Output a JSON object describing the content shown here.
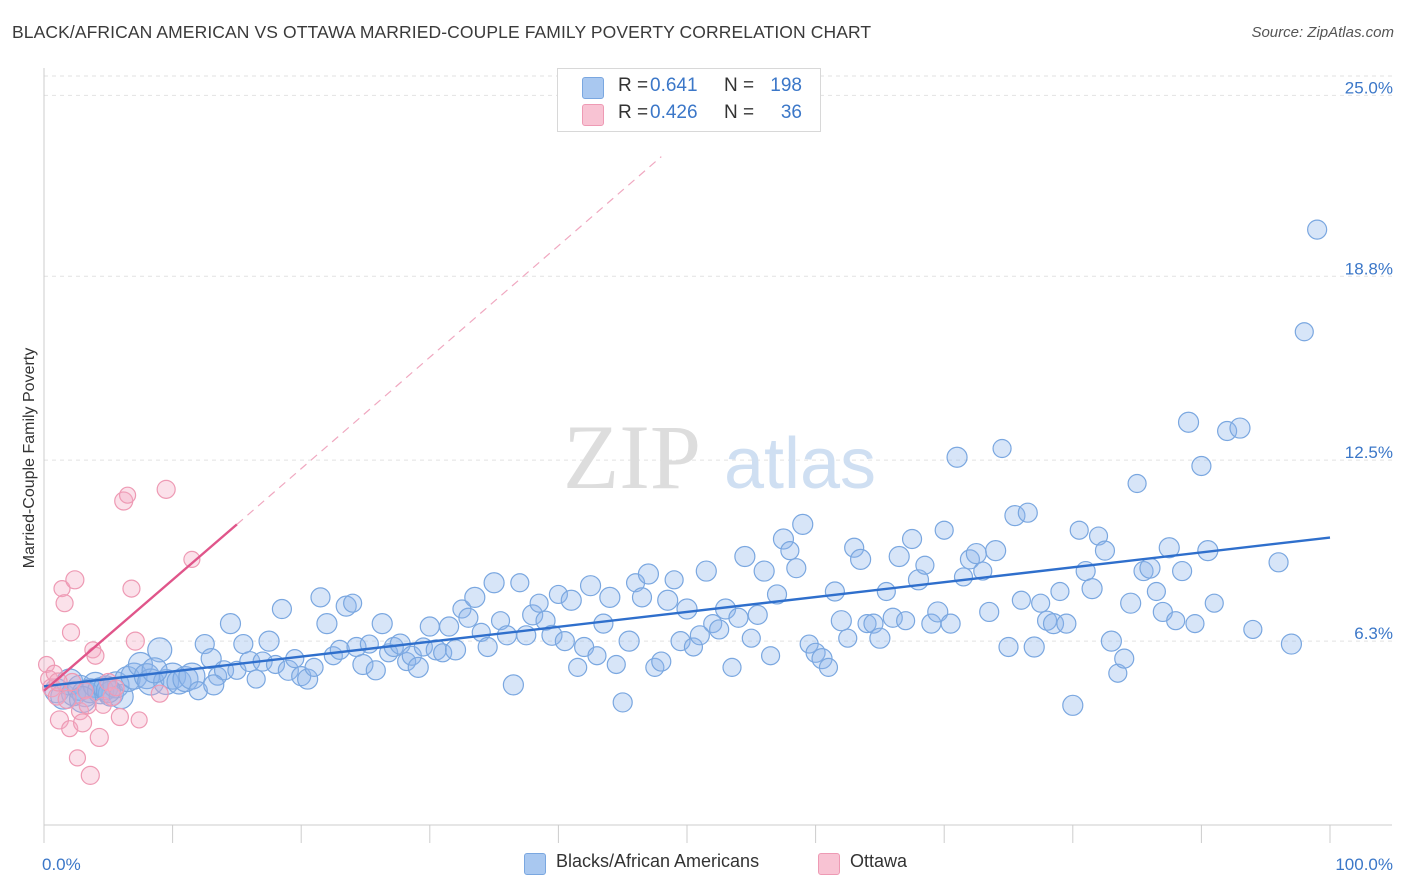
{
  "title": "BLACK/AFRICAN AMERICAN VS OTTAWA MARRIED-COUPLE FAMILY POVERTY CORRELATION CHART",
  "source": "Source: ZipAtlas.com",
  "watermark": {
    "zip": "ZIP",
    "atlas": "atlas"
  },
  "legend": {
    "r_label": "R =",
    "n_label": "N =",
    "rows": [
      {
        "r": "0.641",
        "n": "198",
        "color": "#a9c8f0",
        "border": "#7aa7e0"
      },
      {
        "r": "0.426",
        "n": "36",
        "color": "#f8c3d3",
        "border": "#ee9ab4"
      }
    ]
  },
  "bottom_legend": [
    "Blacks/African Americans",
    "Ottawa"
  ],
  "chart_data": {
    "type": "scatter",
    "xlabel": "",
    "ylabel": "Married-Couple Family Poverty",
    "xlim": [
      0,
      100
    ],
    "ylim": [
      0,
      25.8
    ],
    "x_tick_labels": [
      "0.0%",
      "100.0%"
    ],
    "y_ticks": [
      6.3,
      12.5,
      18.8,
      25.0
    ],
    "y_tick_labels": [
      "6.3%",
      "12.5%",
      "18.8%",
      "25.0%"
    ],
    "grid": true,
    "series": [
      {
        "name": "Blacks/African Americans",
        "color": "#7aa7e0",
        "fill": "rgba(140,180,235,0.35)",
        "trend": {
          "x": [
            0,
            100
          ],
          "y": [
            4.75,
            9.85
          ],
          "color": "#2f6fcc"
        },
        "points": [
          [
            1,
            4.6
          ],
          [
            1.5,
            4.4
          ],
          [
            2,
            4.9
          ],
          [
            2.3,
            4.5
          ],
          [
            2.8,
            4.7
          ],
          [
            3.2,
            4.5
          ],
          [
            3.6,
            4.6
          ],
          [
            4,
            4.8
          ],
          [
            4.4,
            4.6
          ],
          [
            4.8,
            4.7
          ],
          [
            5.2,
            4.5
          ],
          [
            5.6,
            4.8
          ],
          [
            6,
            4.4
          ],
          [
            6.5,
            5.0
          ],
          [
            7,
            5.1
          ],
          [
            7.5,
            5.5
          ],
          [
            8,
            5.1
          ],
          [
            8.3,
            4.9
          ],
          [
            9,
            6.0
          ],
          [
            9.5,
            4.9
          ],
          [
            10,
            5.1
          ],
          [
            10.5,
            4.9
          ],
          [
            11,
            5.0
          ],
          [
            11.5,
            5.1
          ],
          [
            12,
            4.6
          ],
          [
            12.5,
            6.2
          ],
          [
            13,
            5.7
          ],
          [
            13.5,
            5.1
          ],
          [
            14,
            5.3
          ],
          [
            14.5,
            6.9
          ],
          [
            15,
            5.3
          ],
          [
            15.5,
            6.2
          ],
          [
            16,
            5.6
          ],
          [
            16.5,
            5.0
          ],
          [
            17,
            5.6
          ],
          [
            17.5,
            6.3
          ],
          [
            18,
            5.5
          ],
          [
            18.5,
            7.4
          ],
          [
            19,
            5.3
          ],
          [
            19.5,
            5.7
          ],
          [
            20,
            5.1
          ],
          [
            20.5,
            5.0
          ],
          [
            21,
            5.4
          ],
          [
            21.5,
            7.8
          ],
          [
            22,
            6.9
          ],
          [
            22.5,
            5.8
          ],
          [
            23,
            6.0
          ],
          [
            23.5,
            7.5
          ],
          [
            24,
            7.6
          ],
          [
            24.3,
            6.1
          ],
          [
            24.8,
            5.5
          ],
          [
            25.3,
            6.2
          ],
          [
            25.8,
            5.3
          ],
          [
            26.3,
            6.9
          ],
          [
            26.8,
            5.9
          ],
          [
            27.2,
            6.1
          ],
          [
            27.7,
            6.2
          ],
          [
            28.2,
            5.6
          ],
          [
            28.6,
            5.8
          ],
          [
            29.1,
            5.4
          ],
          [
            29.5,
            6.1
          ],
          [
            30,
            6.8
          ],
          [
            30.5,
            6.0
          ],
          [
            31,
            5.9
          ],
          [
            31.5,
            6.8
          ],
          [
            32,
            6.0
          ],
          [
            32.5,
            7.4
          ],
          [
            33,
            7.1
          ],
          [
            33.5,
            7.8
          ],
          [
            34,
            6.6
          ],
          [
            34.5,
            6.1
          ],
          [
            35,
            8.3
          ],
          [
            35.5,
            7.0
          ],
          [
            36,
            6.5
          ],
          [
            36.5,
            4.8
          ],
          [
            37,
            8.3
          ],
          [
            37.5,
            6.5
          ],
          [
            38,
            7.2
          ],
          [
            38.5,
            7.6
          ],
          [
            39,
            7.0
          ],
          [
            39.5,
            6.5
          ],
          [
            40,
            7.9
          ],
          [
            40.5,
            6.3
          ],
          [
            41,
            7.7
          ],
          [
            41.5,
            5.4
          ],
          [
            42,
            6.1
          ],
          [
            42.5,
            8.2
          ],
          [
            43,
            5.8
          ],
          [
            43.5,
            6.9
          ],
          [
            44,
            7.8
          ],
          [
            44.5,
            5.5
          ],
          [
            45,
            4.2
          ],
          [
            45.5,
            6.3
          ],
          [
            46,
            8.3
          ],
          [
            46.5,
            7.8
          ],
          [
            47,
            8.6
          ],
          [
            47.5,
            5.4
          ],
          [
            48,
            5.6
          ],
          [
            48.5,
            7.7
          ],
          [
            49,
            8.4
          ],
          [
            49.5,
            6.3
          ],
          [
            50,
            7.4
          ],
          [
            50.5,
            6.1
          ],
          [
            51,
            6.5
          ],
          [
            51.5,
            8.7
          ],
          [
            52,
            6.9
          ],
          [
            52.5,
            6.7
          ],
          [
            53,
            7.4
          ],
          [
            53.5,
            5.4
          ],
          [
            54,
            7.1
          ],
          [
            54.5,
            9.2
          ],
          [
            55,
            6.4
          ],
          [
            55.5,
            7.2
          ],
          [
            56,
            8.7
          ],
          [
            56.5,
            5.8
          ],
          [
            57,
            7.9
          ],
          [
            57.5,
            9.8
          ],
          [
            58,
            9.4
          ],
          [
            58.5,
            8.8
          ],
          [
            59,
            10.3
          ],
          [
            59.5,
            6.2
          ],
          [
            60,
            5.9
          ],
          [
            60.5,
            5.7
          ],
          [
            61,
            5.4
          ],
          [
            61.5,
            8.0
          ],
          [
            62,
            7.0
          ],
          [
            62.5,
            6.4
          ],
          [
            63,
            9.5
          ],
          [
            63.5,
            9.1
          ],
          [
            64,
            6.9
          ],
          [
            64.5,
            6.9
          ],
          [
            65,
            6.4
          ],
          [
            65.5,
            8.0
          ],
          [
            66,
            7.1
          ],
          [
            66.5,
            9.2
          ],
          [
            67,
            7.0
          ],
          [
            67.5,
            9.8
          ],
          [
            68,
            8.4
          ],
          [
            68.5,
            8.9
          ],
          [
            69,
            6.9
          ],
          [
            69.5,
            7.3
          ],
          [
            70,
            10.1
          ],
          [
            70.5,
            6.9
          ],
          [
            71,
            12.6
          ],
          [
            71.5,
            8.5
          ],
          [
            72,
            9.1
          ],
          [
            72.5,
            9.3
          ],
          [
            73,
            8.7
          ],
          [
            73.5,
            7.3
          ],
          [
            74,
            9.4
          ],
          [
            74.5,
            12.9
          ],
          [
            75,
            6.1
          ],
          [
            75.5,
            10.6
          ],
          [
            76,
            7.7
          ],
          [
            76.5,
            10.7
          ],
          [
            77,
            6.1
          ],
          [
            77.5,
            7.6
          ],
          [
            78,
            7.0
          ],
          [
            78.5,
            6.9
          ],
          [
            79,
            8.0
          ],
          [
            79.5,
            6.9
          ],
          [
            80,
            4.1
          ],
          [
            80.5,
            10.1
          ],
          [
            81,
            8.7
          ],
          [
            81.5,
            8.1
          ],
          [
            82,
            9.9
          ],
          [
            82.5,
            9.4
          ],
          [
            83,
            6.3
          ],
          [
            83.5,
            5.2
          ],
          [
            84,
            5.7
          ],
          [
            84.5,
            7.6
          ],
          [
            85,
            11.7
          ],
          [
            85.5,
            8.7
          ],
          [
            86,
            8.8
          ],
          [
            86.5,
            8.0
          ],
          [
            87,
            7.3
          ],
          [
            87.5,
            9.5
          ],
          [
            88,
            7.0
          ],
          [
            88.5,
            8.7
          ],
          [
            89,
            13.8
          ],
          [
            89.5,
            6.9
          ],
          [
            90,
            12.3
          ],
          [
            90.5,
            9.4
          ],
          [
            91,
            7.6
          ],
          [
            92,
            13.5
          ],
          [
            93,
            13.6
          ],
          [
            94,
            6.7
          ],
          [
            96,
            9.0
          ],
          [
            97,
            6.2
          ],
          [
            98,
            16.9
          ],
          [
            99,
            20.4
          ],
          [
            3,
            4.3
          ],
          [
            5,
            4.6
          ],
          [
            8.6,
            5.3
          ],
          [
            13.2,
            4.8
          ]
        ]
      },
      {
        "name": "Ottawa",
        "color": "#ee9ab4",
        "fill": "rgba(244,170,195,0.35)",
        "trend": {
          "x": [
            0,
            15
          ],
          "y": [
            4.6,
            10.3
          ],
          "color": "#e0558a"
        },
        "trend_ext": {
          "x": [
            15,
            48
          ],
          "y": [
            10.3,
            22.9
          ]
        },
        "points": [
          [
            0.2,
            5.5
          ],
          [
            0.4,
            5.0
          ],
          [
            0.6,
            4.7
          ],
          [
            0.8,
            5.2
          ],
          [
            1.0,
            4.4
          ],
          [
            1.2,
            3.6
          ],
          [
            1.4,
            8.1
          ],
          [
            1.6,
            7.6
          ],
          [
            1.8,
            4.3
          ],
          [
            2.0,
            3.3
          ],
          [
            2.2,
            4.9
          ],
          [
            2.4,
            8.4
          ],
          [
            2.6,
            2.3
          ],
          [
            2.8,
            3.9
          ],
          [
            3.0,
            3.5
          ],
          [
            3.2,
            4.6
          ],
          [
            3.4,
            4.1
          ],
          [
            3.6,
            1.7
          ],
          [
            3.8,
            6.0
          ],
          [
            4.0,
            5.8
          ],
          [
            4.3,
            3.0
          ],
          [
            4.6,
            4.1
          ],
          [
            5.0,
            4.9
          ],
          [
            5.3,
            4.4
          ],
          [
            5.6,
            4.7
          ],
          [
            5.9,
            3.7
          ],
          [
            6.2,
            11.1
          ],
          [
            6.5,
            11.3
          ],
          [
            6.8,
            8.1
          ],
          [
            7.1,
            6.3
          ],
          [
            7.4,
            3.6
          ],
          [
            9.0,
            4.5
          ],
          [
            9.5,
            11.5
          ],
          [
            11.5,
            9.1
          ],
          [
            2.1,
            6.6
          ],
          [
            1.1,
            4.9
          ]
        ]
      }
    ]
  }
}
